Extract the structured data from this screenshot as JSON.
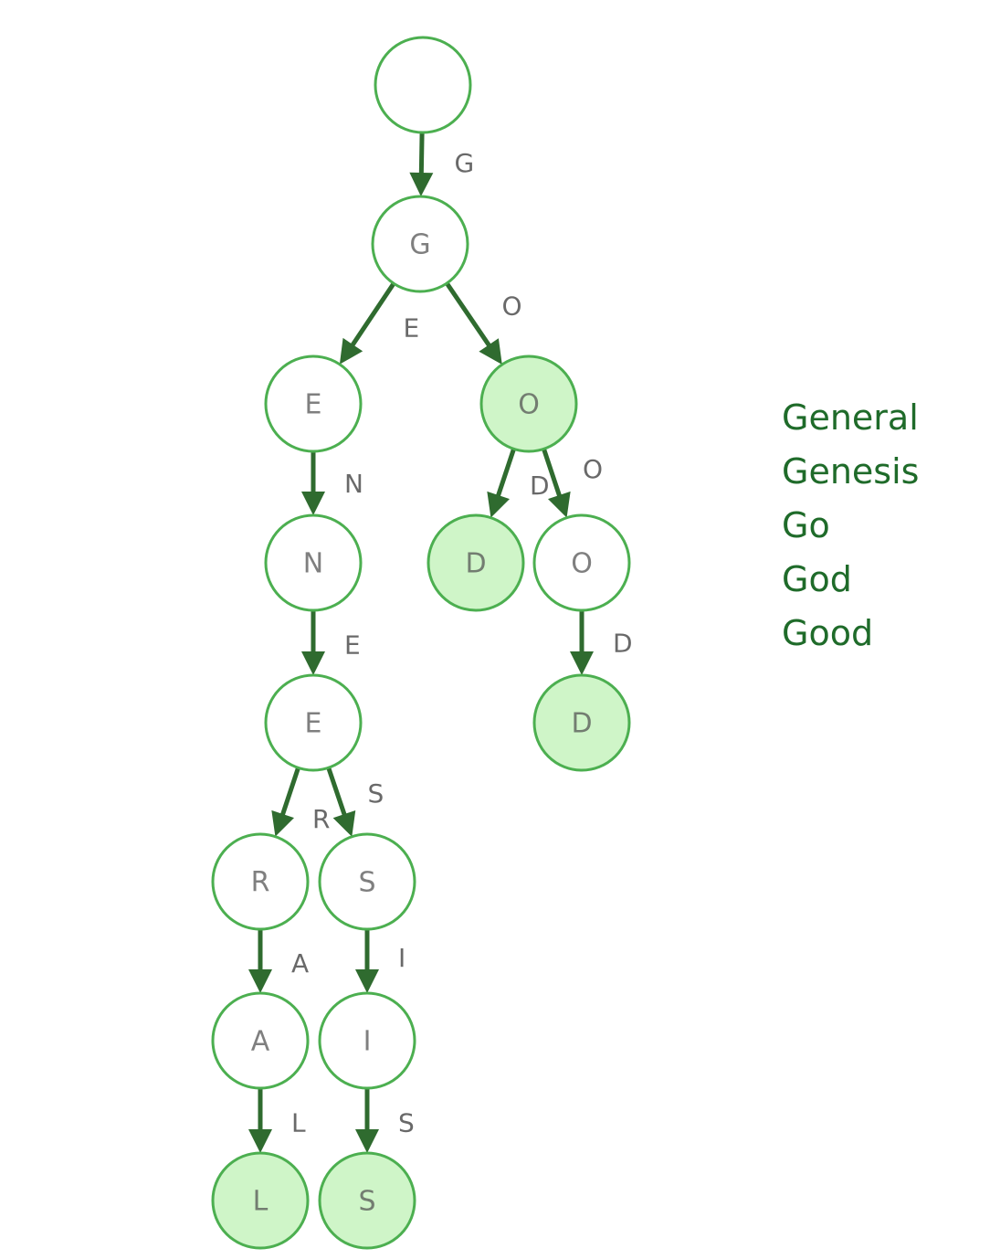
{
  "colors": {
    "node_stroke": "#4caf50",
    "node_fill": "#ffffff",
    "terminal_fill": "#cff5c8",
    "edge": "#2f6b2f",
    "word_text": "#1f6b2a"
  },
  "trie": {
    "nodes": [
      {
        "id": "root",
        "label": "",
        "terminal": false
      },
      {
        "id": "g",
        "label": "G",
        "terminal": false
      },
      {
        "id": "ge",
        "label": "E",
        "terminal": false
      },
      {
        "id": "go",
        "label": "O",
        "terminal": true
      },
      {
        "id": "gen",
        "label": "N",
        "terminal": false
      },
      {
        "id": "god",
        "label": "D",
        "terminal": true
      },
      {
        "id": "goo",
        "label": "O",
        "terminal": false
      },
      {
        "id": "gene",
        "label": "E",
        "terminal": false
      },
      {
        "id": "good",
        "label": "D",
        "terminal": true
      },
      {
        "id": "gener",
        "label": "R",
        "terminal": false
      },
      {
        "id": "genes",
        "label": "S",
        "terminal": false
      },
      {
        "id": "genera",
        "label": "A",
        "terminal": false
      },
      {
        "id": "genesi",
        "label": "I",
        "terminal": false
      },
      {
        "id": "general",
        "label": "L",
        "terminal": true
      },
      {
        "id": "genesis",
        "label": "S",
        "terminal": true
      }
    ],
    "edges": [
      {
        "from": "root",
        "to": "g",
        "label": "G"
      },
      {
        "from": "g",
        "to": "ge",
        "label": "E"
      },
      {
        "from": "g",
        "to": "go",
        "label": "O"
      },
      {
        "from": "ge",
        "to": "gen",
        "label": "N"
      },
      {
        "from": "go",
        "to": "god",
        "label": "D"
      },
      {
        "from": "go",
        "to": "goo",
        "label": "O"
      },
      {
        "from": "gen",
        "to": "gene",
        "label": "E"
      },
      {
        "from": "goo",
        "to": "good",
        "label": "D"
      },
      {
        "from": "gene",
        "to": "gener",
        "label": "R"
      },
      {
        "from": "gene",
        "to": "genes",
        "label": "S"
      },
      {
        "from": "gener",
        "to": "genera",
        "label": "A"
      },
      {
        "from": "genes",
        "to": "genesi",
        "label": "I"
      },
      {
        "from": "genera",
        "to": "general",
        "label": "L"
      },
      {
        "from": "genesi",
        "to": "genesis",
        "label": "S"
      }
    ]
  },
  "words": [
    "General",
    "Genesis",
    "Go",
    "God",
    "Good"
  ]
}
